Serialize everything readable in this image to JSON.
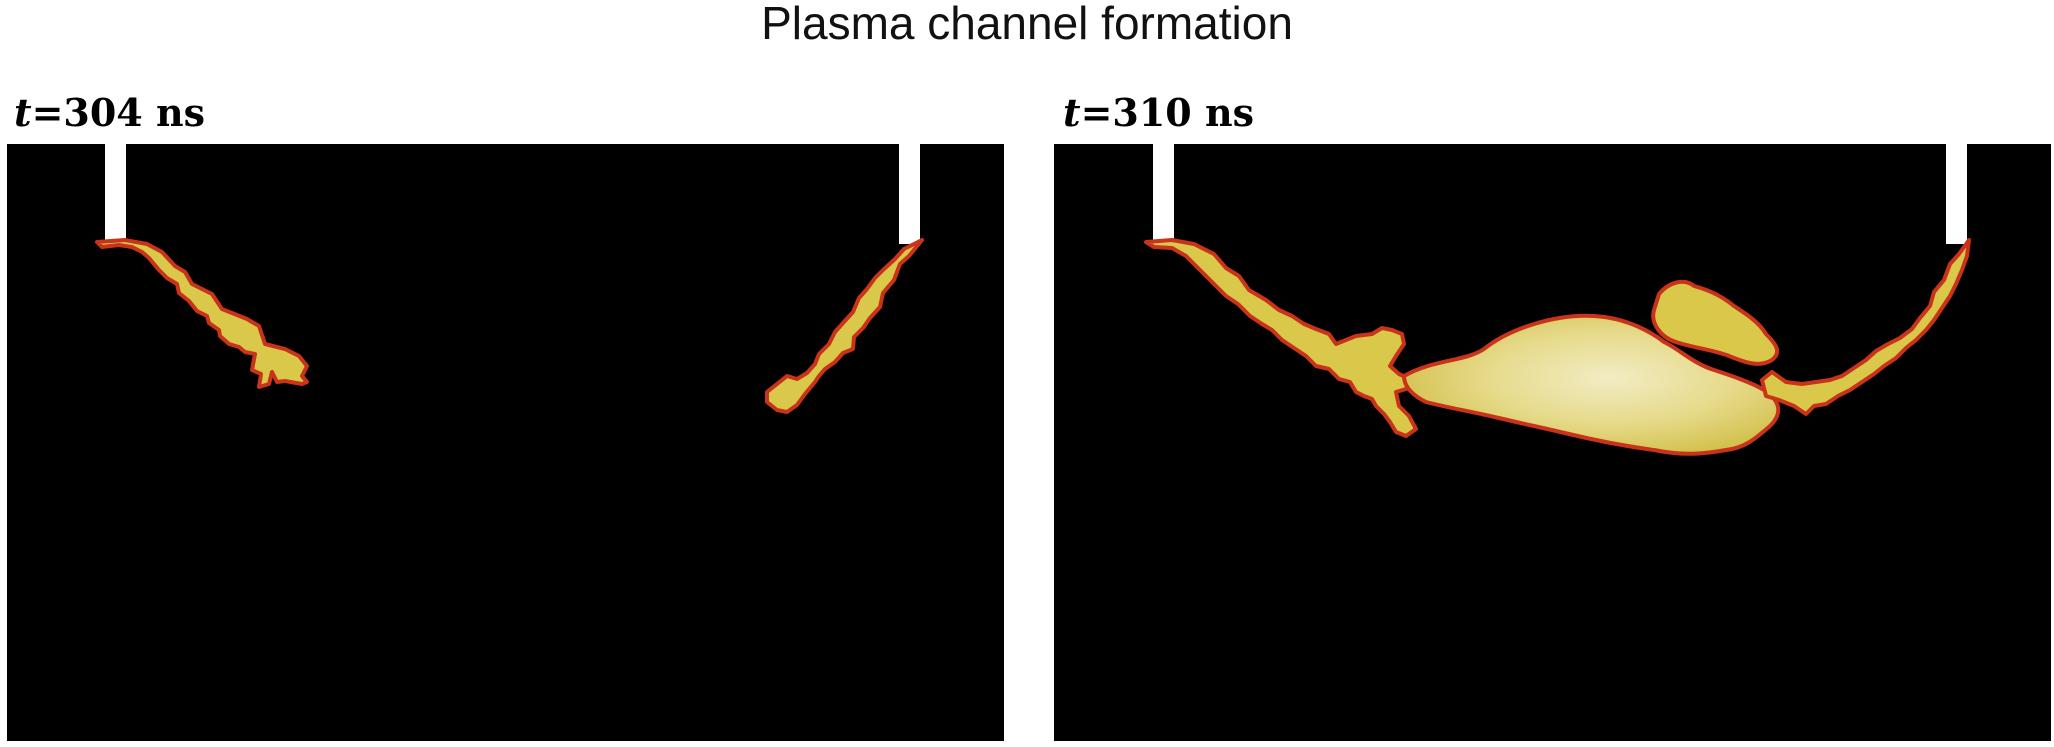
{
  "title": "Plasma channel formation",
  "panels": [
    {
      "time_symbol": "t",
      "time_value": "=304 ns"
    },
    {
      "time_symbol": "t",
      "time_value": "=310 ns"
    }
  ],
  "colors": {
    "background": "#ffffff",
    "domain": "#000000",
    "electrode": "#ffffff",
    "plasma_edge": "#c8331a",
    "plasma_body": "#d9c84a",
    "plasma_core": "#f2ecc4"
  }
}
